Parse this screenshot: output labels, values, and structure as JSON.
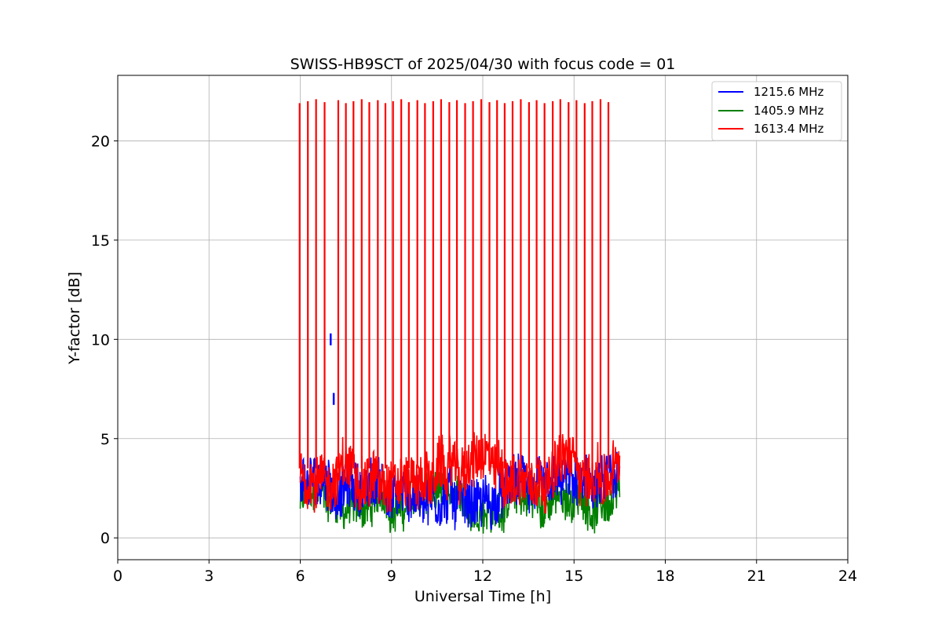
{
  "chart_data": {
    "type": "line",
    "title": "SWISS-HB9SCT of 2025/04/30 with focus code = 01",
    "xlabel": "Universal Time [h]",
    "ylabel": "Y-factor [dB]",
    "xlim": [
      0,
      24
    ],
    "ylim": [
      -1.1,
      23.3
    ],
    "xticks": [
      0,
      3,
      6,
      9,
      12,
      15,
      18,
      21,
      24
    ],
    "yticks": [
      0,
      5,
      10,
      15,
      20
    ],
    "grid": true,
    "legend_position": "top-right",
    "observation_window_h": [
      6.0,
      16.5
    ],
    "series": [
      {
        "name": "1215.6 MHz",
        "color": "#0000ff",
        "baseline_range": [
          0.1,
          4.6
        ],
        "extra_peaks": [
          {
            "x": 7.0,
            "y": 10.3
          },
          {
            "x": 7.1,
            "y": 7.3
          }
        ]
      },
      {
        "name": "1405.9 MHz",
        "color": "#008000",
        "baseline_range": [
          0.0,
          3.6
        ]
      },
      {
        "name": "1613.4 MHz",
        "color": "#ff0000",
        "baseline_range": [
          1.0,
          5.8
        ],
        "spike_times": [
          5.98,
          6.25,
          6.52,
          6.8,
          7.25,
          7.5,
          7.75,
          8.02,
          8.27,
          8.55,
          8.8,
          9.05,
          9.32,
          9.57,
          9.85,
          10.1,
          10.37,
          10.63,
          10.9,
          11.15,
          11.42,
          11.68,
          11.95,
          12.22,
          12.47,
          12.72,
          12.98,
          13.25,
          13.52,
          13.77,
          14.03,
          14.3,
          14.55,
          14.82,
          15.08,
          15.35,
          15.6,
          15.87,
          16.13
        ],
        "spike_peak": 22.0
      }
    ]
  }
}
